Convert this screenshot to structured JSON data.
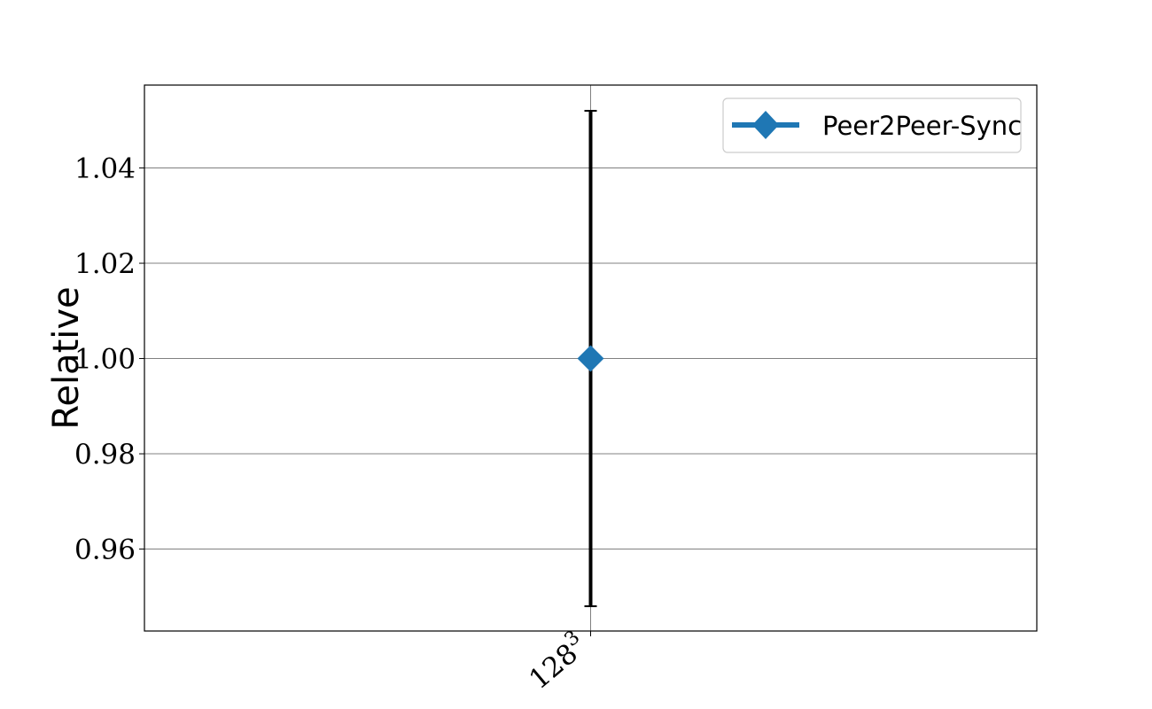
{
  "chart_data": {
    "type": "line",
    "title": "",
    "xlabel": "",
    "ylabel": "Relative",
    "categories": [
      "128"
    ],
    "category_superscripts": [
      "3"
    ],
    "ylim": [
      0.9428,
      1.0574
    ],
    "yticks": [
      0.96,
      0.98,
      1.0,
      1.02,
      1.04
    ],
    "ytick_labels": [
      "0.96",
      "0.98",
      "1.00",
      "1.02",
      "1.04"
    ],
    "grid": true,
    "legend": {
      "placement": "top-right"
    },
    "series": [
      {
        "name": "Peer2Peer-Sync",
        "color": "#1f77b4",
        "marker": "diamond",
        "values": [
          1.0
        ],
        "error_low": [
          0.948
        ],
        "error_high": [
          1.052
        ],
        "error_color": "#000000"
      }
    ]
  }
}
